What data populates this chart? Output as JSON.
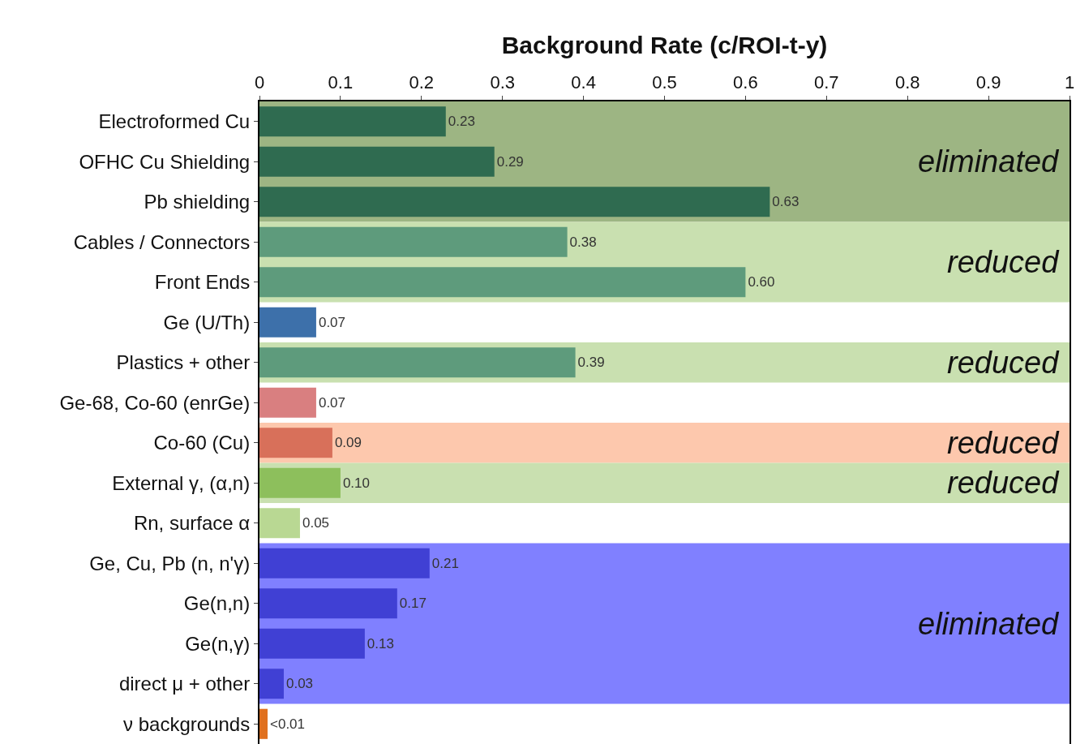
{
  "chart_data": {
    "type": "bar",
    "orientation": "horizontal",
    "xlabel": "Background Rate (c/ROI-t-y)",
    "categories": [
      "Electroformed Cu",
      "OFHC Cu Shielding",
      "Pb shielding",
      "Cables / Connectors",
      "Front Ends",
      "Ge (U/Th)",
      "Plastics + other",
      "Ge-68, Co-60 (enrGe)",
      "Co-60 (Cu)",
      "External γ, (α,n)",
      "Rn, surface α",
      "Ge, Cu, Pb (n, n'γ)",
      "Ge(n,n)",
      "Ge(n,γ)",
      "direct μ + other",
      "ν backgrounds"
    ],
    "values": [
      0.23,
      0.29,
      0.63,
      0.38,
      0.6,
      0.07,
      0.39,
      0.07,
      0.09,
      0.1,
      0.05,
      0.21,
      0.17,
      0.13,
      0.03,
      0.01
    ],
    "value_labels": [
      "0.23",
      "0.29",
      "0.63",
      "0.38",
      "0.60",
      "0.07",
      "0.39",
      "0.07",
      "0.09",
      "0.10",
      "0.05",
      "0.21",
      "0.17",
      "0.13",
      "0.03",
      "<0.01"
    ],
    "colors": [
      "#2f6b50",
      "#2f6b50",
      "#2f6b50",
      "#5e9b7c",
      "#5e9b7c",
      "#3d70aa",
      "#5e9b7c",
      "#d97f80",
      "#d8705a",
      "#8dbf5c",
      "#b9d893",
      "#4040d4",
      "#4040d4",
      "#4040d4",
      "#4040d4",
      "#e0701e"
    ],
    "xlim": [
      0,
      1
    ],
    "xticks": [
      0,
      0.1,
      0.2,
      0.3,
      0.4,
      0.5,
      0.6,
      0.7,
      0.8,
      0.9,
      1
    ],
    "bands": [
      {
        "axis": "y",
        "from": "Electroformed Cu",
        "to": "Pb shielding",
        "label": "eliminated",
        "color": "#9db583"
      },
      {
        "axis": "y",
        "from": "Cables / Connectors",
        "to": "Front Ends",
        "label": "reduced",
        "color": "#c9e0b0"
      },
      {
        "axis": "y",
        "from": "Plastics + other",
        "to": "Plastics + other",
        "label": "reduced",
        "color": "#c9e0b0"
      },
      {
        "axis": "y",
        "from": "Co-60 (Cu)",
        "to": "Co-60 (Cu)",
        "label": "reduced",
        "color": "#fdc8ad"
      },
      {
        "axis": "y",
        "from": "External γ, (α,n)",
        "to": "External γ, (α,n)",
        "label": "reduced",
        "color": "#c9e0b0"
      },
      {
        "axis": "y",
        "from": "Ge, Cu, Pb (n, n'γ)",
        "to": "direct μ + other",
        "label": "eliminated",
        "color": "#8080ff"
      }
    ],
    "grid": false
  }
}
